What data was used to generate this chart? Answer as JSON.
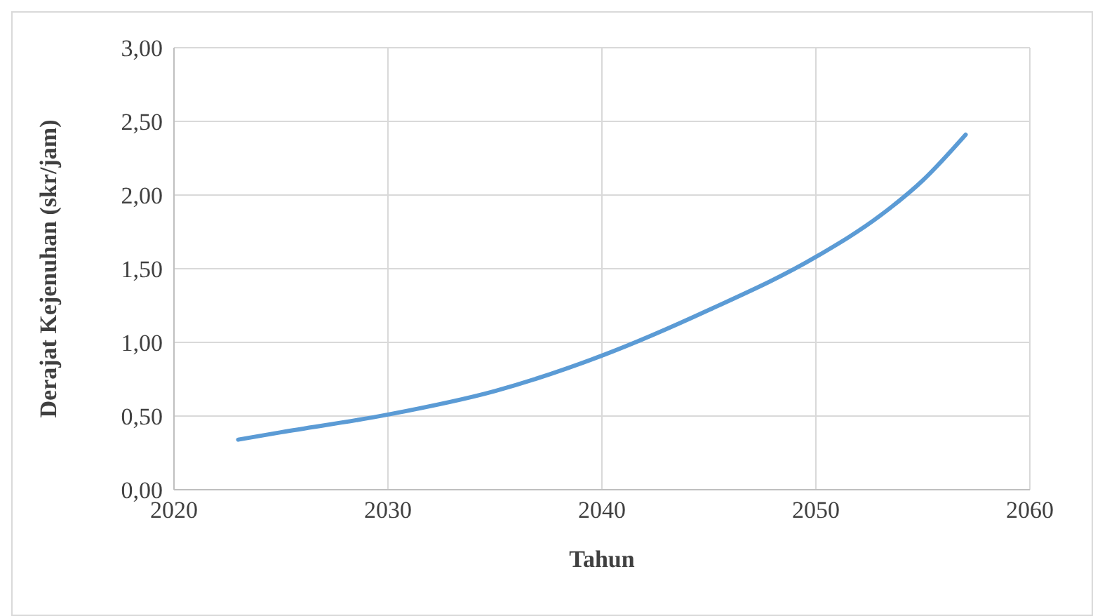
{
  "chart_data": {
    "type": "line",
    "xlabel": "Tahun",
    "ylabel": "Derajat Kejenuhan (skr/jam)",
    "x": [
      2023,
      2025,
      2030,
      2035,
      2040,
      2045,
      2050,
      2053,
      2055,
      2057
    ],
    "series": [
      {
        "color": "#5b9bd5",
        "values": [
          0.34,
          0.39,
          0.51,
          0.67,
          0.91,
          1.22,
          1.58,
          1.86,
          2.1,
          2.41
        ]
      }
    ],
    "xlim": [
      2020,
      2060
    ],
    "xticks": [
      2020,
      2030,
      2040,
      2050,
      2060
    ],
    "ylim": [
      0,
      3
    ],
    "yticks": [
      {
        "value": 0,
        "label": "0,00"
      },
      {
        "value": 0.5,
        "label": "0,50"
      },
      {
        "value": 1,
        "label": "1,00"
      },
      {
        "value": 1.5,
        "label": "1,50"
      },
      {
        "value": 2,
        "label": "2,00"
      },
      {
        "value": 2.5,
        "label": "2,50"
      },
      {
        "value": 3,
        "label": "3,00"
      }
    ],
    "grid": true,
    "marker": "none",
    "line_style": "solid"
  }
}
